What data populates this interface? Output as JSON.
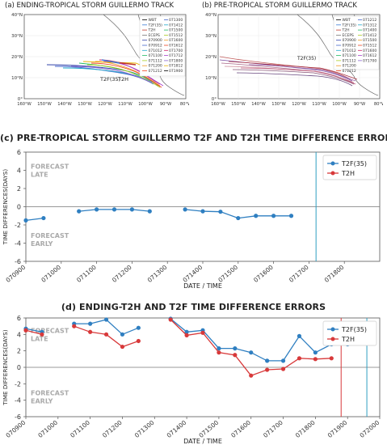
{
  "map_a": {
    "title": "(a) ENDING-TROPICAL STORM GUILLERMO TRACK",
    "lat_labels": [
      "40°N",
      "30°N",
      "20°N",
      "10°N",
      "0°"
    ],
    "lon_labels": [
      "160°W",
      "150°W",
      "140°W",
      "130°W",
      "120°W",
      "110°W",
      "100°W",
      "90°W",
      "80°W"
    ],
    "legend_col1": [
      "WBT",
      "T2F(35)",
      "T2H",
      "ECEPS",
      "070900",
      "070912",
      "071012",
      "071100",
      "071112",
      "071200",
      "071212"
    ],
    "legend_col2": [
      "071300",
      "071412",
      "071500",
      "071512",
      "071600",
      "071612",
      "071700",
      "071712",
      "071800",
      "071812",
      "071900"
    ],
    "marker_labels": [
      "T2F(35)",
      "T2H"
    ]
  },
  "map_b": {
    "title": "(b) PRE-TROPICAL STORM GUILLERMO TRACK",
    "lat_labels": [
      "40°N",
      "30°N",
      "20°N",
      "10°N",
      "0°"
    ],
    "lon_labels": [
      "160°W",
      "150°W",
      "140°W",
      "130°W",
      "120°W",
      "110°W",
      "100°W",
      "90°W",
      "80°W"
    ],
    "legend_col1": [
      "WBT",
      "T2F(35)",
      "T2H",
      "ECEPS",
      "070900",
      "070912",
      "071012",
      "071100",
      "071112",
      "071200",
      "071212"
    ],
    "legend_col2": [
      "071212",
      "071312",
      "071400",
      "071412",
      "071500",
      "071512",
      "071600",
      "071612",
      "071700"
    ],
    "marker_labels": [
      "T2F(35)"
    ]
  },
  "chart_data": [
    {
      "type": "line",
      "title": "(c) PRE-TROPICAL STORM GUILLERMO T2F AND T2H TIME DIFFERENCE ERRORS",
      "xlabel": "DATE / TIME",
      "ylabel": "TIME DIFFERENCES(DAYS)",
      "xlim": [
        0,
        10
      ],
      "ylim": [
        -6,
        6
      ],
      "yticks": [
        -6,
        -4,
        -2,
        0,
        2,
        4,
        6
      ],
      "x_tick_labels": [
        "070900",
        "071000",
        "071100",
        "071200",
        "071300",
        "071400",
        "071500",
        "071600",
        "071700",
        "071800"
      ],
      "annotations": [
        "FORECAST\nLATE",
        "FORECAST\nEARLY"
      ],
      "legend_position": "top-right",
      "series": [
        {
          "name": "T2F(35)",
          "color": "#2f7fc1",
          "segments": [
            [
              [
                0.0,
                -1.5
              ],
              [
                0.5,
                -1.25
              ]
            ],
            [
              [
                1.5,
                -0.5
              ],
              [
                2.0,
                -0.3
              ],
              [
                2.5,
                -0.3
              ],
              [
                3.0,
                -0.3
              ],
              [
                3.5,
                -0.5
              ]
            ],
            [
              [
                4.5,
                -0.3
              ],
              [
                5.0,
                -0.5
              ],
              [
                5.5,
                -0.55
              ],
              [
                6.0,
                -1.25
              ],
              [
                6.5,
                -1.0
              ],
              [
                7.0,
                -1.0
              ],
              [
                7.5,
                -1.0
              ]
            ]
          ]
        },
        {
          "name": "T2H",
          "color": "#d8393a",
          "segments": []
        }
      ],
      "vlines": [
        {
          "x": 8.2,
          "color": "#2f9ec1"
        }
      ]
    },
    {
      "type": "line",
      "title": "(d) ENDING-T2H AND T2F TIME DIFFERENCE ERRORS",
      "xlabel": "DATE / TIME",
      "ylabel": "TIME DIFFERENCES(DAYS)",
      "xlim": [
        0,
        11
      ],
      "ylim": [
        -6,
        6
      ],
      "yticks": [
        -6,
        -4,
        -2,
        0,
        2,
        4,
        6
      ],
      "x_tick_labels": [
        "070900",
        "071000",
        "071100",
        "071200",
        "071300",
        "071400",
        "071500",
        "071600",
        "071700",
        "071800",
        "071900",
        "072000"
      ],
      "annotations": [
        "FORECAST\nLATE",
        "FORECAST\nEARLY"
      ],
      "legend_position": "top-right",
      "series": [
        {
          "name": "T2F(35)",
          "color": "#2f7fc1",
          "segments": [
            [
              [
                0.0,
                4.7
              ],
              [
                0.5,
                4.3
              ]
            ],
            [
              [
                1.5,
                5.3
              ],
              [
                2.0,
                5.3
              ],
              [
                2.5,
                5.8
              ],
              [
                3.0,
                4.0
              ],
              [
                3.5,
                4.8
              ]
            ],
            [
              [
                4.5,
                5.9
              ],
              [
                5.0,
                4.3
              ],
              [
                5.5,
                4.5
              ],
              [
                6.0,
                2.3
              ],
              [
                6.5,
                2.3
              ],
              [
                7.0,
                1.8
              ],
              [
                7.5,
                0.8
              ],
              [
                8.0,
                0.8
              ],
              [
                8.5,
                3.8
              ],
              [
                9.0,
                1.8
              ],
              [
                9.5,
                2.8
              ],
              [
                10.0,
                2.8
              ]
            ]
          ]
        },
        {
          "name": "T2H",
          "color": "#d8393a",
          "segments": [
            [
              [
                0.0,
                4.5
              ],
              [
                0.5,
                4.0
              ]
            ],
            [
              [
                1.5,
                5.0
              ],
              [
                2.0,
                4.3
              ],
              [
                2.5,
                4.0
              ],
              [
                3.0,
                2.5
              ],
              [
                3.5,
                3.2
              ]
            ],
            [
              [
                4.5,
                5.8
              ],
              [
                5.0,
                3.9
              ],
              [
                5.5,
                4.2
              ],
              [
                6.0,
                1.8
              ],
              [
                6.5,
                1.5
              ],
              [
                7.0,
                -1.0
              ],
              [
                7.5,
                -0.3
              ],
              [
                8.0,
                -0.2
              ],
              [
                8.5,
                1.1
              ],
              [
                9.0,
                1.0
              ],
              [
                9.5,
                1.1
              ]
            ]
          ]
        }
      ],
      "vlines": [
        {
          "x": 9.8,
          "color": "#d8393a"
        },
        {
          "x": 10.6,
          "color": "#2f9ec1"
        }
      ]
    }
  ]
}
